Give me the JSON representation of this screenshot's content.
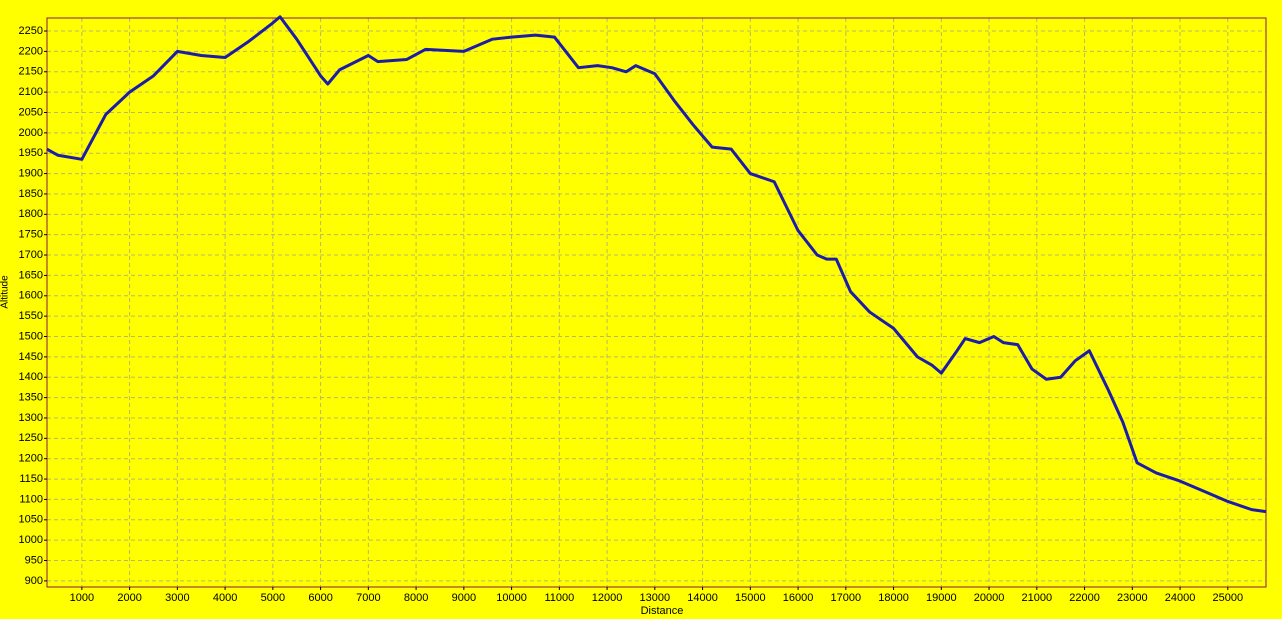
{
  "chart_data": {
    "type": "line",
    "x_label": "Distance",
    "y_label": "Altitude",
    "grid": true,
    "background": "#ffff00",
    "series": [
      {
        "color": "#1c1ca8",
        "x": [
          270,
          500,
          1000,
          1500,
          2000,
          2500,
          3000,
          3500,
          4000,
          4500,
          5000,
          5150,
          5500,
          6000,
          6150,
          6400,
          7000,
          7200,
          7800,
          8200,
          9000,
          9600,
          10000,
          10500,
          10900,
          11400,
          11800,
          12100,
          12400,
          12600,
          13000,
          13400,
          13800,
          14200,
          14600,
          15000,
          15500,
          16000,
          16400,
          16600,
          16800,
          17100,
          17500,
          18000,
          18500,
          18800,
          19000,
          19300,
          19500,
          19800,
          20100,
          20300,
          20600,
          20900,
          21200,
          21500,
          21800,
          22100,
          22500,
          22800,
          23100,
          23500,
          24000,
          24500,
          25000,
          25500,
          25800
        ],
        "values": [
          1960,
          1945,
          1935,
          2045,
          2100,
          2140,
          2200,
          2190,
          2185,
          2225,
          2270,
          2285,
          2230,
          2140,
          2120,
          2155,
          2190,
          2175,
          2180,
          2205,
          2200,
          2230,
          2235,
          2240,
          2235,
          2160,
          2165,
          2160,
          2150,
          2165,
          2145,
          2080,
          2020,
          1965,
          1960,
          1900,
          1880,
          1760,
          1700,
          1690,
          1690,
          1610,
          1560,
          1520,
          1450,
          1430,
          1410,
          1460,
          1495,
          1485,
          1500,
          1485,
          1480,
          1420,
          1395,
          1400,
          1440,
          1465,
          1368,
          1290,
          1190,
          1165,
          1145,
          1120,
          1095,
          1075,
          1070
        ]
      }
    ],
    "xlim": [
      270,
      25800
    ],
    "ylim": [
      885,
      2282
    ],
    "xticks": [
      1000,
      2000,
      3000,
      4000,
      5000,
      6000,
      7000,
      8000,
      9000,
      10000,
      11000,
      12000,
      13000,
      14000,
      15000,
      16000,
      17000,
      18000,
      19000,
      20000,
      21000,
      22000,
      23000,
      24000,
      25000
    ],
    "yticks": [
      900,
      950,
      1000,
      1050,
      1100,
      1150,
      1200,
      1250,
      1300,
      1350,
      1400,
      1450,
      1500,
      1550,
      1600,
      1650,
      1700,
      1750,
      1800,
      1850,
      1900,
      1950,
      2000,
      2050,
      2100,
      2150,
      2200,
      2250
    ]
  }
}
